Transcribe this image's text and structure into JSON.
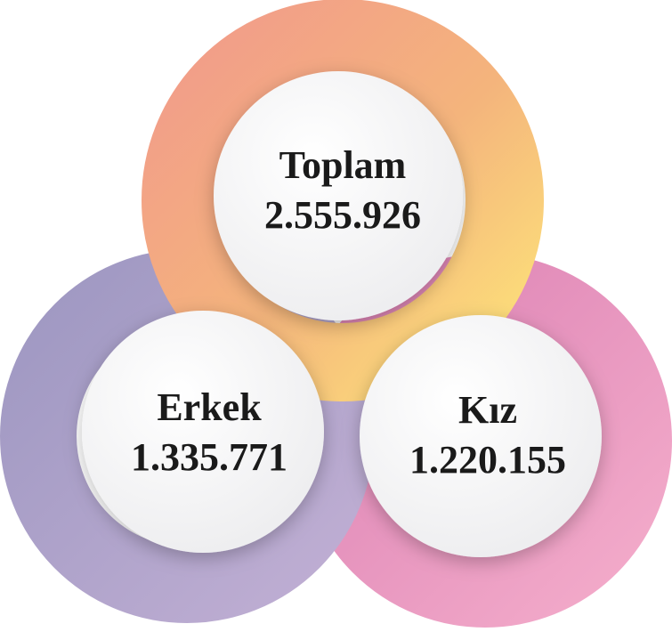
{
  "items": [
    {
      "label": "Toplam",
      "value": "2.555.926"
    },
    {
      "label": "Erkek",
      "value": "1.335.771"
    },
    {
      "label": "Kız",
      "value": "1.220.155"
    }
  ]
}
